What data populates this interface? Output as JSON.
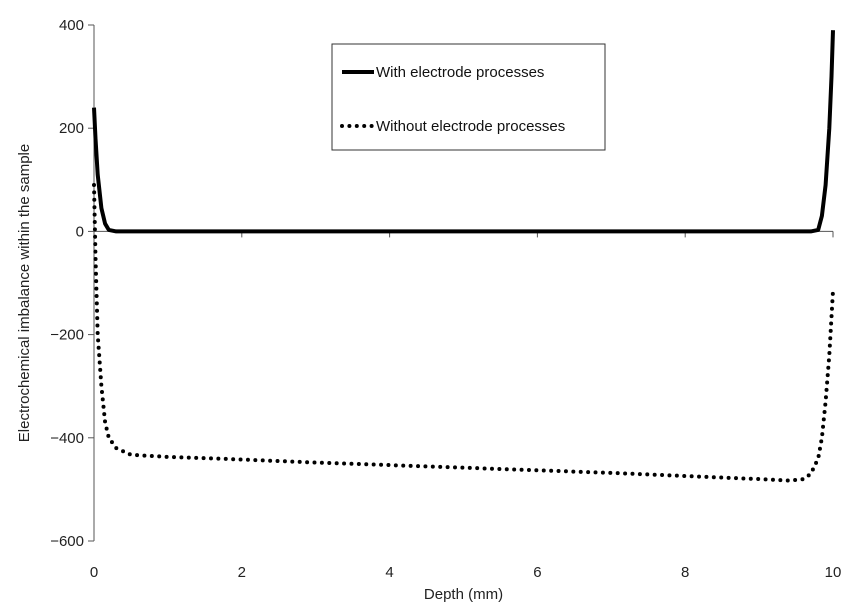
{
  "chart_data": {
    "type": "line",
    "title": "",
    "xlabel": "Depth (mm)",
    "ylabel": "Electrochemical imbalance within the sample",
    "xlim": [
      0,
      10
    ],
    "ylim": [
      -600,
      400
    ],
    "xticks": [
      0,
      2,
      4,
      6,
      8,
      10
    ],
    "yticks": [
      400,
      200,
      0,
      -200,
      -400,
      -600
    ],
    "xtick_labels": [
      "0",
      "2",
      "4",
      "6",
      "8",
      "10"
    ],
    "ytick_labels": [
      "400",
      "200",
      "0",
      "−200",
      "−400",
      "−600"
    ],
    "grid": false,
    "legend_position": "top-center",
    "series": [
      {
        "name": "With electrode processes",
        "style": "solid",
        "color": "#000000",
        "x": [
          0.0,
          0.02,
          0.05,
          0.1,
          0.15,
          0.2,
          0.3,
          1,
          2,
          4,
          6,
          8,
          9.7,
          9.8,
          9.85,
          9.9,
          9.95,
          9.98,
          10.0
        ],
        "y": [
          240,
          180,
          110,
          45,
          15,
          3,
          0,
          0,
          0,
          0,
          0,
          0,
          0,
          3,
          30,
          90,
          200,
          300,
          390
        ]
      },
      {
        "name": "Without electrode processes",
        "style": "dotted",
        "color": "#000000",
        "x": [
          0.0,
          0.02,
          0.05,
          0.1,
          0.15,
          0.2,
          0.3,
          0.5,
          1,
          2,
          3,
          4,
          5,
          6,
          7,
          8,
          9,
          9.4,
          9.6,
          9.7,
          9.8,
          9.85,
          9.9,
          9.95,
          10.0
        ],
        "y": [
          90,
          -50,
          -200,
          -300,
          -370,
          -400,
          -420,
          -433,
          -437,
          -442,
          -448,
          -453,
          -458,
          -463,
          -468,
          -474,
          -480,
          -483,
          -480,
          -470,
          -440,
          -400,
          -330,
          -240,
          -115
        ]
      }
    ]
  }
}
